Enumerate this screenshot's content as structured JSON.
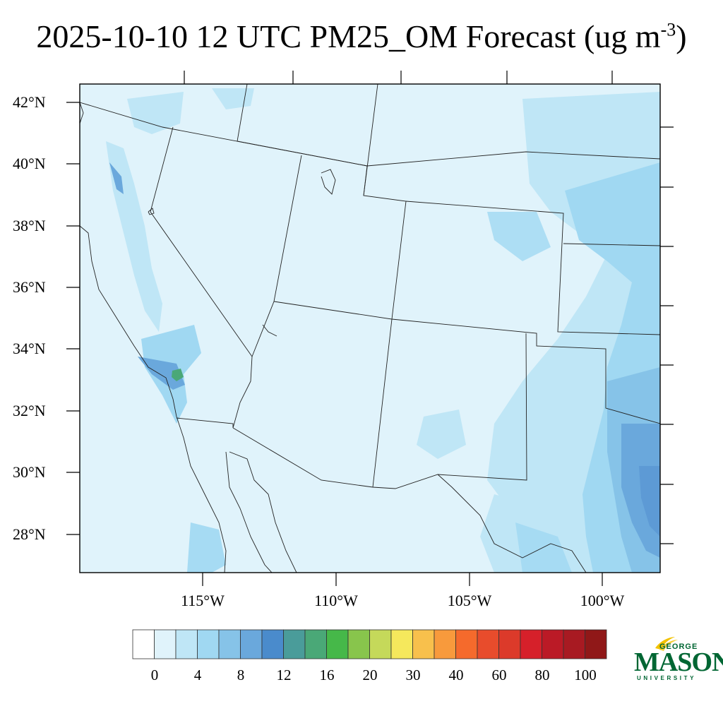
{
  "title": {
    "text": "2025-10-10 12 UTC PM25_OM Forecast (ug m",
    "superscript": "-3",
    "suffix": ")"
  },
  "lat_labels": [
    "42°N",
    "40°N",
    "38°N",
    "36°N",
    "34°N",
    "32°N",
    "30°N",
    "28°N"
  ],
  "lon_labels": [
    "115°W",
    "110°W",
    "105°W",
    "100°W"
  ],
  "colorbar": {
    "colors": [
      "#ffffff",
      "#e0f3fb",
      "#bfe6f6",
      "#a0d8f2",
      "#86c3e8",
      "#6aa8dc",
      "#4a8bcc",
      "#4a9c9a",
      "#4aa877",
      "#46b849",
      "#88c54c",
      "#c5d95a",
      "#f5e85c",
      "#f8c04c",
      "#f89a3c",
      "#f56a2c",
      "#e84c2c",
      "#dc3a2a",
      "#d6202a",
      "#bb1a26",
      "#a81a22",
      "#901818"
    ],
    "labels": [
      "0",
      "4",
      "8",
      "12",
      "16",
      "20",
      "30",
      "40",
      "60",
      "80",
      "100"
    ]
  },
  "logo": {
    "line1": "GEORGE",
    "line2": "MASON",
    "line3": "UNIVERSITY"
  }
}
